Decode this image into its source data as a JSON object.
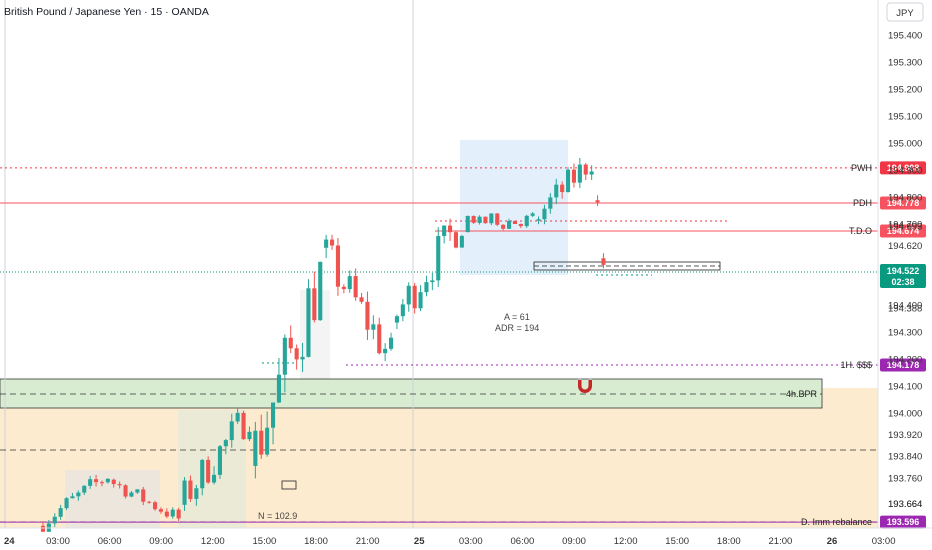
{
  "header": {
    "title": "British Pound / Japanese Yen · 15 · OANDA"
  },
  "price_axis": {
    "currency_label": "JPY",
    "ticks": [
      195.4,
      195.3,
      195.2,
      195.1,
      195.0,
      194.9,
      194.8,
      194.7,
      194.62,
      194.5,
      194.4,
      194.3,
      194.2,
      194.1,
      194.0,
      193.92,
      193.84,
      193.76,
      193.664
    ]
  },
  "time_axis": {
    "labels": [
      "24",
      "03:00",
      "06:00",
      "09:00",
      "12:00",
      "15:00",
      "18:00",
      "21:00",
      "25",
      "03:00",
      "06:00",
      "09:00",
      "12:00",
      "15:00",
      "18:00",
      "21:00",
      "26",
      "03:00"
    ]
  },
  "levels": [
    {
      "name": "PWH",
      "price": 194.908,
      "price_label": "194.908",
      "color": "#f23645",
      "style": "dotted"
    },
    {
      "name": "PDH",
      "price": 194.778,
      "price_label": "194.778",
      "color": "#f7525f",
      "style": "solid"
    },
    {
      "name": "T.D.O",
      "price": 194.674,
      "price_label": "194.674",
      "color": "#f7525f",
      "style": "solid"
    },
    {
      "name": "1H. $$$",
      "price": 194.178,
      "price_label": "194.178",
      "color": "#9c27b0",
      "style": "dotted"
    },
    {
      "name": "D. Imm rebalance",
      "price": 193.596,
      "price_label": "193.596",
      "color": "#9c27b0",
      "style": "solid"
    }
  ],
  "current_price": {
    "price": 194.522,
    "price_label": "194.522",
    "countdown": "02:38",
    "color": "#089981"
  },
  "extra_axis_values": [
    "194.693",
    "194.388",
    "193.664"
  ],
  "zones": {
    "bpr_label": "4h.BPR",
    "bpr_top": 194.12,
    "bpr_bottom": 194.02
  },
  "annotations": {
    "a_value": "A = 61",
    "adr_value": "ADR = 194",
    "n_value": "N = 102.9"
  },
  "colors": {
    "up": "#26a69a",
    "down": "#ef5350",
    "bpr_fill": "#d8ecd2",
    "orange_zone": "#fdebd0",
    "blue_zone": "#e3f0fb"
  },
  "chart_data": {
    "type": "candlestick",
    "instrument": "British Pound / Japanese Yen",
    "timeframe": "15",
    "source": "OANDA",
    "ylim": [
      193.58,
      195.45
    ],
    "sessions": [
      {
        "period": "24 00:00-06:00",
        "range": [
          193.56,
          193.78
        ],
        "trend": "up"
      },
      {
        "period": "24 06:00-09:00",
        "range": [
          193.6,
          193.77
        ],
        "trend": "down"
      },
      {
        "period": "24 09:00-15:00",
        "range": [
          193.62,
          194.02
        ],
        "trend": "up"
      },
      {
        "period": "24 15:00-18:00",
        "range": [
          193.72,
          194.56
        ],
        "trend": "up"
      },
      {
        "period": "24 18:00-21:00",
        "range": [
          194.18,
          194.66
        ],
        "trend": "down"
      },
      {
        "period": "24 21:00-25 00:00",
        "range": [
          194.29,
          194.74
        ],
        "trend": "up"
      },
      {
        "period": "25 00:00-03:00",
        "range": [
          194.66,
          194.76
        ],
        "trend": "flat"
      },
      {
        "period": "25 03:00-05:00",
        "range": [
          194.68,
          195.0
        ],
        "trend": "up"
      },
      {
        "period": "25 05:00-09:00",
        "range": [
          194.5,
          194.82
        ],
        "trend": "down"
      },
      {
        "period": "25 09:00-10:00",
        "range": [
          194.33,
          194.6
        ],
        "trend": "down"
      }
    ]
  }
}
